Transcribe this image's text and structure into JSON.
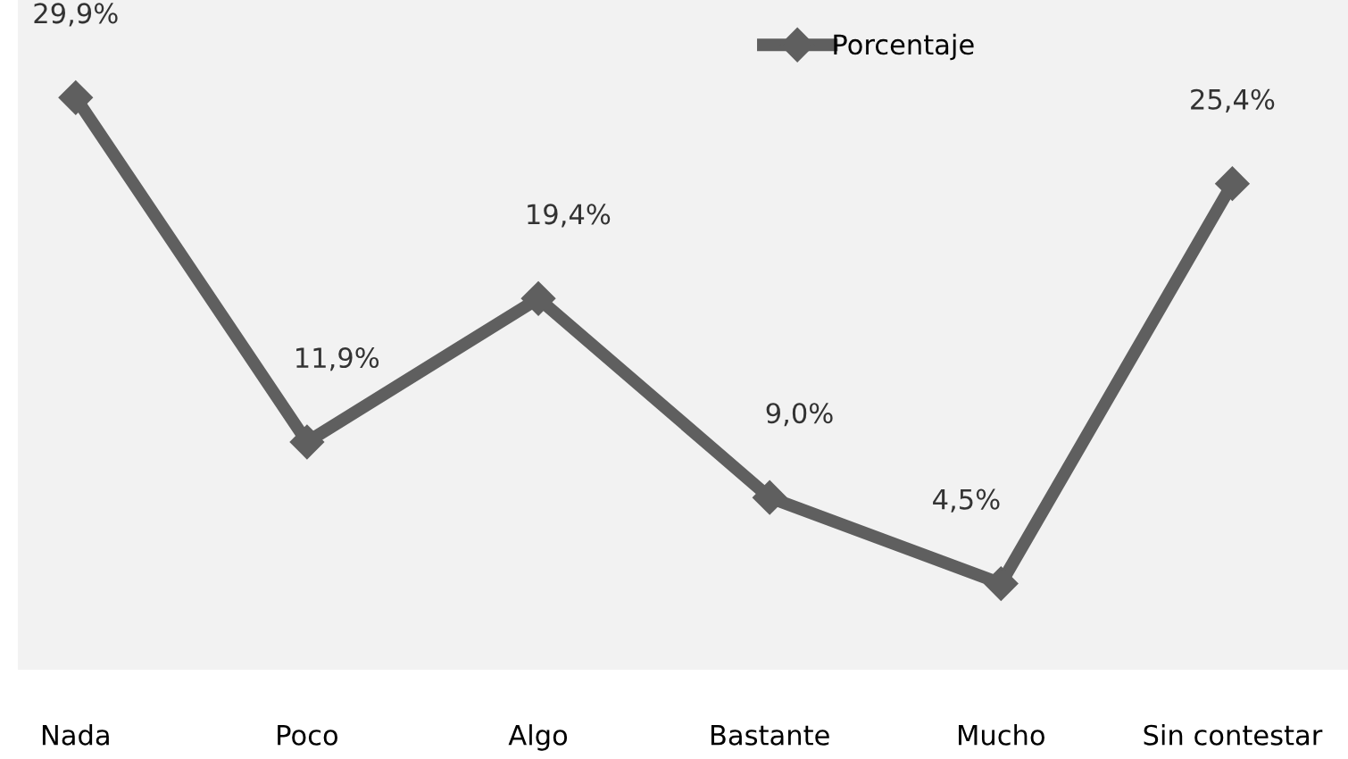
{
  "chart_data": {
    "type": "line",
    "categories": [
      "Nada",
      "Poco",
      "Algo",
      "Bastante",
      "Mucho",
      "Sin contestar"
    ],
    "series": [
      {
        "name": "Porcentaje",
        "color": "#5f5f5f",
        "values": [
          29.9,
          11.9,
          19.4,
          9.0,
          4.5,
          25.4
        ],
        "value_labels": [
          "29,9%",
          "11,9%",
          "19,4%",
          "9,0%",
          "4,5%",
          "25,4%"
        ]
      }
    ],
    "ylim": [
      0,
      35
    ],
    "tick_labels": "x",
    "marker": "diamond",
    "line_style": "solid",
    "legend": "top",
    "grid": false
  }
}
